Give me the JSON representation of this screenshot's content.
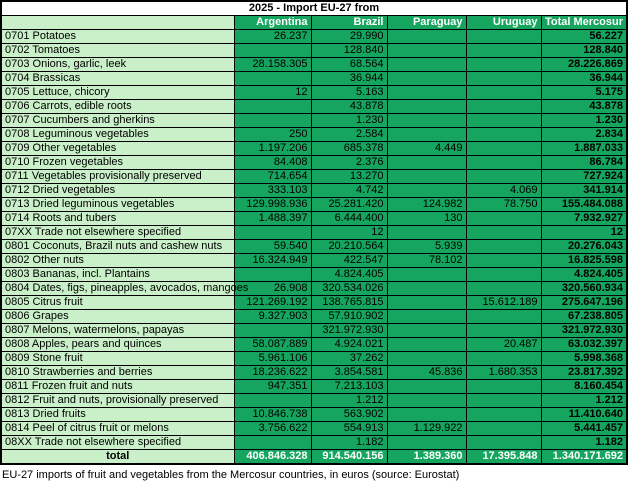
{
  "title": "2025  -  Import EU-27 from",
  "table": {
    "columns": [
      "",
      "Argentina",
      "Brazil",
      "Paraguay",
      "Uruguay",
      "Total Mercosur"
    ],
    "rows": [
      {
        "label": "0701 Potatoes",
        "values": [
          "26.237",
          "29.990",
          "",
          "",
          "56.227"
        ]
      },
      {
        "label": "0702 Tomatoes",
        "values": [
          "",
          "128.840",
          "",
          "",
          "128.840"
        ]
      },
      {
        "label": "0703 Onions, garlic, leek",
        "values": [
          "28.158.305",
          "68.564",
          "",
          "",
          "28.226.869"
        ]
      },
      {
        "label": "0704 Brassicas",
        "values": [
          "",
          "36.944",
          "",
          "",
          "36.944"
        ]
      },
      {
        "label": "0705 Lettuce, chicory",
        "values": [
          "12",
          "5.163",
          "",
          "",
          "5.175"
        ]
      },
      {
        "label": "0706 Carrots, edible roots",
        "values": [
          "",
          "43.878",
          "",
          "",
          "43.878"
        ]
      },
      {
        "label": "0707 Cucumbers and gherkins",
        "values": [
          "",
          "1.230",
          "",
          "",
          "1.230"
        ]
      },
      {
        "label": "0708 Leguminous vegetables",
        "values": [
          "250",
          "2.584",
          "",
          "",
          "2.834"
        ]
      },
      {
        "label": "0709 Other vegetables",
        "values": [
          "1.197.206",
          "685.378",
          "4.449",
          "",
          "1.887.033"
        ]
      },
      {
        "label": "0710 Frozen vegetables",
        "values": [
          "84.408",
          "2.376",
          "",
          "",
          "86.784"
        ]
      },
      {
        "label": "0711 Vegetables provisionally preserved",
        "values": [
          "714.654",
          "13.270",
          "",
          "",
          "727.924"
        ]
      },
      {
        "label": "0712 Dried vegetables",
        "values": [
          "333.103",
          "4.742",
          "",
          "4.069",
          "341.914"
        ]
      },
      {
        "label": "0713 Dried leguminous vegetables",
        "values": [
          "129.998.936",
          "25.281.420",
          "124.982",
          "78.750",
          "155.484.088"
        ]
      },
      {
        "label": "0714 Roots and tubers",
        "values": [
          "1.488.397",
          "6.444.400",
          "130",
          "",
          "7.932.927"
        ]
      },
      {
        "label": "07XX Trade not elsewhere specified",
        "values": [
          "",
          "12",
          "",
          "",
          "12"
        ]
      },
      {
        "label": "0801 Coconuts, Brazil nuts and cashew nuts",
        "values": [
          "59.540",
          "20.210.564",
          "5.939",
          "",
          "20.276.043"
        ]
      },
      {
        "label": "0802 Other nuts",
        "values": [
          "16.324.949",
          "422.547",
          "78.102",
          "",
          "16.825.598"
        ]
      },
      {
        "label": "0803 Bananas, incl. Plantains",
        "values": [
          "",
          "4.824.405",
          "",
          "",
          "4.824.405"
        ]
      },
      {
        "label": "0804 Dates, figs, pineapples, avocados, mangoes",
        "values": [
          "26.908",
          "320.534.026",
          "",
          "",
          "320.560.934"
        ]
      },
      {
        "label": "0805 Citrus fruit",
        "values": [
          "121.269.192",
          "138.765.815",
          "",
          "15.612.189",
          "275.647.196"
        ]
      },
      {
        "label": "0806 Grapes",
        "values": [
          "9.327.903",
          "57.910.902",
          "",
          "",
          "67.238.805"
        ]
      },
      {
        "label": "0807 Melons, watermelons, papayas",
        "values": [
          "",
          "321.972.930",
          "",
          "",
          "321.972.930"
        ]
      },
      {
        "label": "0808 Apples, pears and quinces",
        "values": [
          "58.087.889",
          "4.924.021",
          "",
          "20.487",
          "63.032.397"
        ]
      },
      {
        "label": "0809 Stone fruit",
        "values": [
          "5.961.106",
          "37.262",
          "",
          "",
          "5.998.368"
        ]
      },
      {
        "label": "0810 Strawberries and berries",
        "values": [
          "18.236.622",
          "3.854.581",
          "45.836",
          "1.680.353",
          "23.817.392"
        ]
      },
      {
        "label": "0811 Frozen fruit and nuts",
        "values": [
          "947.351",
          "7.213.103",
          "",
          "",
          "8.160.454"
        ]
      },
      {
        "label": "0812 Fruit and nuts, provisionally preserved",
        "values": [
          "",
          "1.212",
          "",
          "",
          "1.212"
        ]
      },
      {
        "label": "0813 Dried fruits",
        "values": [
          "10.846.738",
          "563.902",
          "",
          "",
          "11.410.640"
        ]
      },
      {
        "label": "0814 Peel of citrus fruit or melons",
        "values": [
          "3.756.622",
          "554.913",
          "1.129.922",
          "",
          "5.441.457"
        ]
      },
      {
        "label": "08XX Trade not elsewhere specified",
        "values": [
          "",
          "1.182",
          "",
          "",
          "1.182"
        ]
      }
    ],
    "total_row": {
      "label": "total",
      "values": [
        "406.846.328",
        "914.540.156",
        "1.389.360",
        "17.395.848",
        "1.340.171.692"
      ]
    }
  },
  "caption": "EU-27 imports of fruit and vegetables from the Mercosur countries, in euros (source: Eurostat)",
  "colors": {
    "cell_green": "#15a55e",
    "label_green": "#c9f0c8",
    "header_text": "#ffffff",
    "grid": "#000000"
  }
}
